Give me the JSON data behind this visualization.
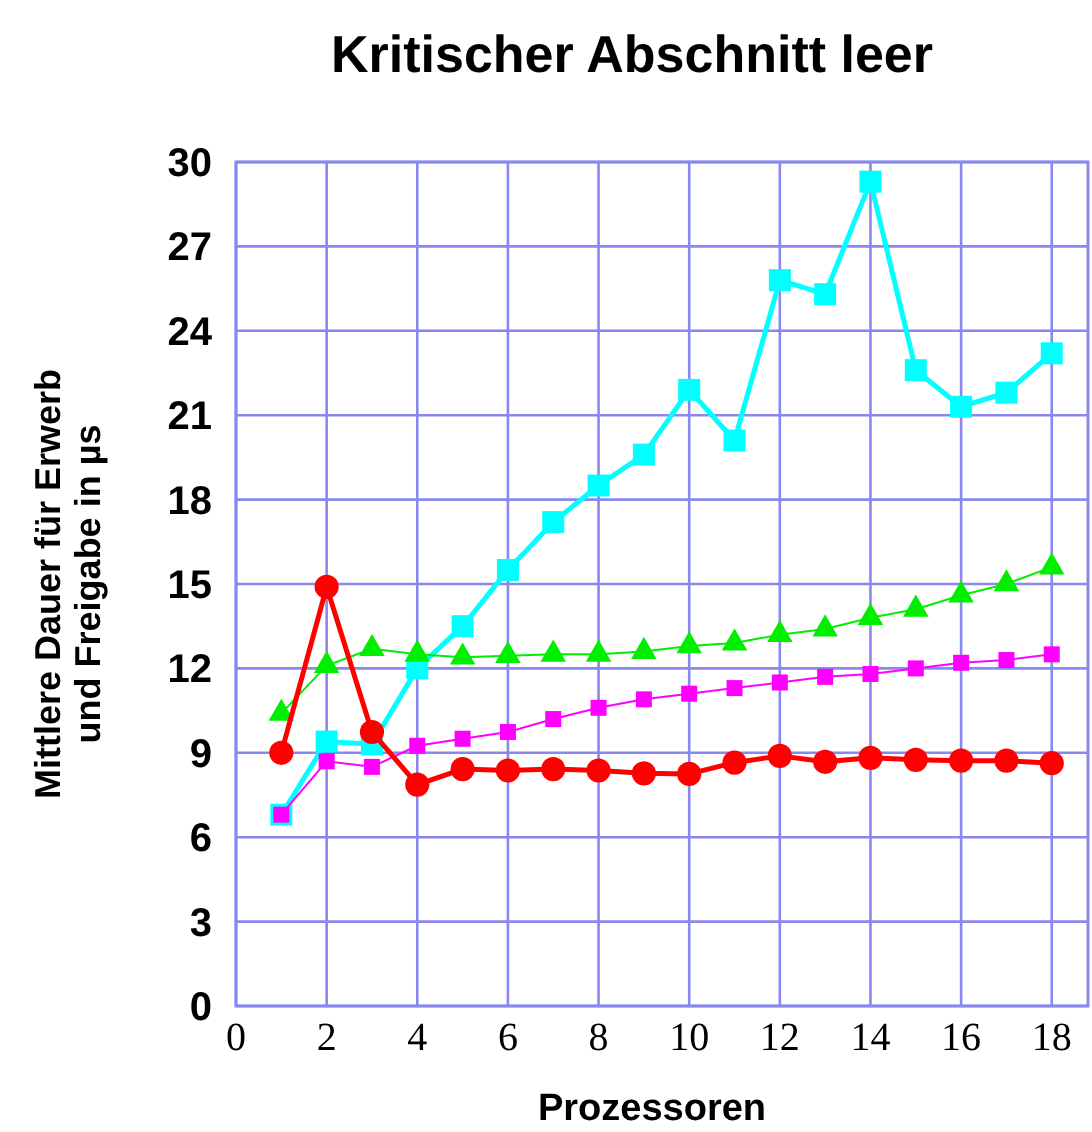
{
  "chart_data": {
    "type": "line",
    "title": "Kritischer Abschnitt leer",
    "xlabel": "Prozessoren",
    "ylabel": "Mittlere Dauer für Erwerb\nund Freigabe in µs",
    "x": [
      1,
      2,
      3,
      4,
      5,
      6,
      7,
      8,
      9,
      10,
      11,
      12,
      13,
      14,
      15,
      16,
      17,
      18
    ],
    "xlim": [
      0,
      18.8
    ],
    "xticks": [
      0,
      2,
      4,
      6,
      8,
      10,
      12,
      14,
      16,
      18
    ],
    "ylim": [
      0,
      30
    ],
    "yticks": [
      0,
      3,
      6,
      9,
      12,
      15,
      18,
      21,
      24,
      27,
      30
    ],
    "grid": true,
    "series": [
      {
        "color": "#00ffff",
        "marker": "square",
        "values": [
          6.8,
          9.4,
          9.3,
          12.0,
          13.5,
          15.5,
          17.2,
          18.5,
          19.6,
          21.9,
          20.1,
          25.8,
          25.3,
          29.3,
          22.6,
          21.3,
          21.8,
          23.2
        ]
      },
      {
        "color": "#00ee00",
        "marker": "triangle",
        "values": [
          10.4,
          12.1,
          12.7,
          12.5,
          12.4,
          12.45,
          12.5,
          12.5,
          12.6,
          12.8,
          12.9,
          13.2,
          13.4,
          13.8,
          14.1,
          14.6,
          15.0,
          15.6
        ]
      },
      {
        "color": "#ff00ff",
        "marker": "square",
        "values": [
          6.8,
          8.7,
          8.5,
          9.25,
          9.5,
          9.74,
          10.2,
          10.6,
          10.9,
          11.1,
          11.3,
          11.5,
          11.7,
          11.8,
          12.0,
          12.2,
          12.3,
          12.5
        ]
      },
      {
        "color": "#ff0000",
        "marker": "circle",
        "values": [
          9.0,
          14.9,
          9.74,
          7.87,
          8.42,
          8.37,
          8.42,
          8.37,
          8.27,
          8.25,
          8.65,
          8.89,
          8.68,
          8.82,
          8.75,
          8.72,
          8.72,
          8.63
        ]
      }
    ]
  }
}
